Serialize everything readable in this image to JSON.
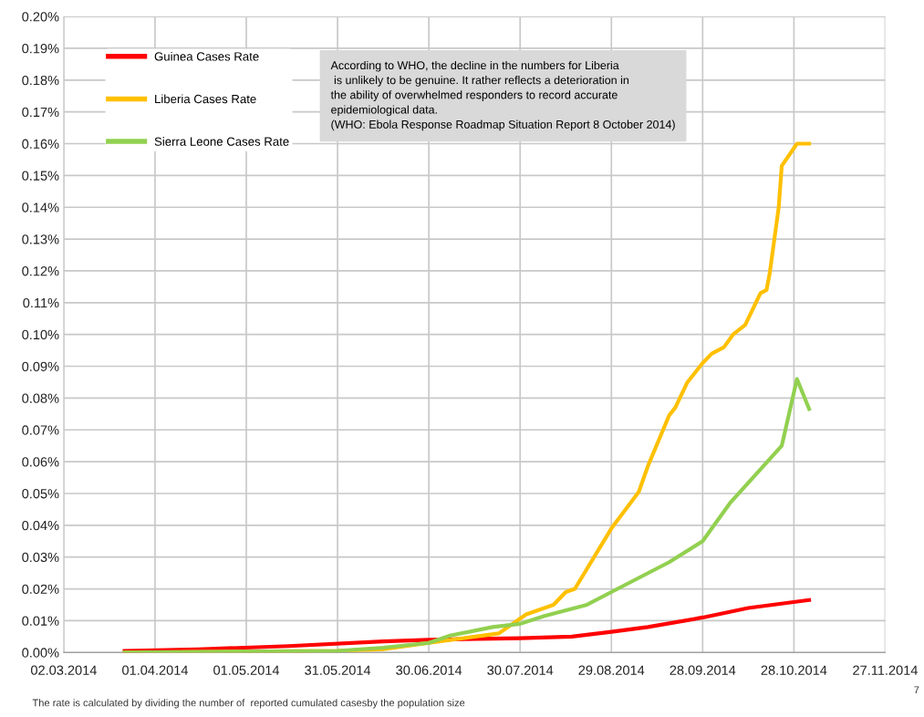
{
  "chart_data": {
    "type": "line",
    "annotations": [
      "According to WHO, the decline in the numbers for Liberia\n is unlikely to be genuine. It rather reflects a deterioration in\nthe ability of overwhelmed responders to record accurate\nepidemiological data.\n(WHO: Ebola Response Roadmap Situation Report 8 October 2014)",
      "The rate is calculated by dividing the number of  reported cumulated casesby the population size",
      "7"
    ],
    "series": [
      {
        "name": "Guinea Cases Rate",
        "color": "#ff0000",
        "x": [
          "2014-03-22",
          "2014-04-15",
          "2014-05-15",
          "2014-06-15",
          "2014-06-30",
          "2014-07-30",
          "2014-08-16",
          "2014-08-29",
          "2014-09-10",
          "2014-09-28",
          "2014-10-13",
          "2014-11-02"
        ],
        "values": [
          0.0005,
          0.001,
          0.002,
          0.0035,
          0.004,
          0.0045,
          0.005,
          0.0065,
          0.008,
          0.011,
          0.014,
          0.0165
        ]
      },
      {
        "name": "Liberia Cases Rate",
        "color": "#ffc000",
        "x": [
          "2014-03-22",
          "2014-05-31",
          "2014-06-15",
          "2014-06-30",
          "2014-07-23",
          "2014-08-01",
          "2014-08-10",
          "2014-08-14",
          "2014-08-17",
          "2014-08-29",
          "2014-09-07",
          "2014-09-10",
          "2014-09-17",
          "2014-09-19",
          "2014-09-23",
          "2014-09-28",
          "2014-10-01",
          "2014-10-05",
          "2014-10-08",
          "2014-10-12",
          "2014-10-17",
          "2014-10-19",
          "2014-10-20",
          "2014-10-23",
          "2014-10-24",
          "2014-10-29",
          "2014-11-02"
        ],
        "values": [
          0.0,
          0.0005,
          0.001,
          0.003,
          0.006,
          0.012,
          0.015,
          0.019,
          0.02,
          0.039,
          0.0505,
          0.0586,
          0.0746,
          0.077,
          0.085,
          0.091,
          0.094,
          0.096,
          0.1,
          0.103,
          0.113,
          0.114,
          0.119,
          0.14,
          0.153,
          0.16,
          0.16
        ]
      },
      {
        "name": "Sierra Leone Cases Rate",
        "color": "#92d050",
        "x": [
          "2014-03-22",
          "2014-05-31",
          "2014-06-15",
          "2014-06-30",
          "2014-07-07",
          "2014-07-21",
          "2014-07-30",
          "2014-08-07",
          "2014-08-21",
          "2014-08-29",
          "2014-09-17",
          "2014-09-28",
          "2014-10-01",
          "2014-10-07",
          "2014-10-24",
          "2014-10-29",
          "2014-11-02"
        ],
        "values": [
          0.0,
          0.0005,
          0.0015,
          0.003,
          0.0053,
          0.008,
          0.009,
          0.0115,
          0.015,
          0.019,
          0.0284,
          0.035,
          0.039,
          0.047,
          0.065,
          0.086,
          0.0766
        ]
      }
    ],
    "xlim": [
      "2014-03-02",
      "2014-11-27"
    ],
    "xticks": [
      {
        "value": "2014-03-02",
        "label": "02.03.2014"
      },
      {
        "value": "2014-04-01",
        "label": "01.04.2014"
      },
      {
        "value": "2014-05-01",
        "label": "01.05.2014"
      },
      {
        "value": "2014-05-31",
        "label": "31.05.2014"
      },
      {
        "value": "2014-06-30",
        "label": "30.06.2014"
      },
      {
        "value": "2014-07-30",
        "label": "30.07.2014"
      },
      {
        "value": "2014-08-29",
        "label": "29.08.2014"
      },
      {
        "value": "2014-09-28",
        "label": "28.09.2014"
      },
      {
        "value": "2014-10-28",
        "label": "28.10.2014"
      },
      {
        "value": "2014-11-27",
        "label": "27.11.2014"
      }
    ],
    "ylim": [
      0,
      0.2
    ],
    "yticks": [
      {
        "value": 0,
        "label": "0.00%"
      },
      {
        "value": 0.01,
        "label": "0.01%"
      },
      {
        "value": 0.02,
        "label": "0.02%"
      },
      {
        "value": 0.03,
        "label": "0.03%"
      },
      {
        "value": 0.04,
        "label": "0.04%"
      },
      {
        "value": 0.05,
        "label": "0.05%"
      },
      {
        "value": 0.06,
        "label": "0.06%"
      },
      {
        "value": 0.07,
        "label": "0.07%"
      },
      {
        "value": 0.08,
        "label": "0.08%"
      },
      {
        "value": 0.09,
        "label": "0.09%"
      },
      {
        "value": 0.1,
        "label": "0.10%"
      },
      {
        "value": 0.11,
        "label": "0.11%"
      },
      {
        "value": 0.12,
        "label": "0.12%"
      },
      {
        "value": 0.13,
        "label": "0.13%"
      },
      {
        "value": 0.14,
        "label": "0.14%"
      },
      {
        "value": 0.15,
        "label": "0.15%"
      },
      {
        "value": 0.16,
        "label": "0.16%"
      },
      {
        "value": 0.17,
        "label": "0.17%"
      },
      {
        "value": 0.18,
        "label": "0.18%"
      },
      {
        "value": 0.19,
        "label": "0.19%"
      },
      {
        "value": 0.2,
        "label": "0.20%"
      }
    ],
    "grid": true,
    "legend": "top left",
    "marker": "none",
    "line_style": "solid"
  }
}
